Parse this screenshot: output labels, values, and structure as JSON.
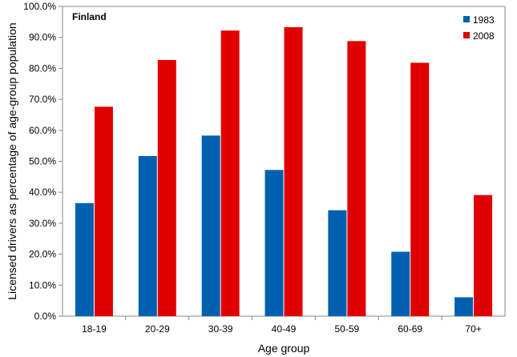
{
  "chart_data": {
    "type": "bar",
    "title": "Finland",
    "xlabel": "Age group",
    "ylabel": "Licensed drivers as percentage of age-group population",
    "categories": [
      "18-19",
      "20-29",
      "30-39",
      "40-49",
      "50-59",
      "60-69",
      "70+"
    ],
    "series": [
      {
        "name": "1983",
        "color": "#0060b0",
        "values": [
          36.5,
          51.7,
          58.3,
          47.2,
          34.2,
          20.8,
          6.1
        ]
      },
      {
        "name": "2008",
        "color": "#e00000",
        "values": [
          67.6,
          82.7,
          92.2,
          93.3,
          88.8,
          81.8,
          39.1
        ]
      }
    ],
    "ylim": [
      0,
      100
    ],
    "ytick_step": 10,
    "ytick_format": "percent_1dp",
    "grid": false,
    "legend_position": "top-right"
  }
}
